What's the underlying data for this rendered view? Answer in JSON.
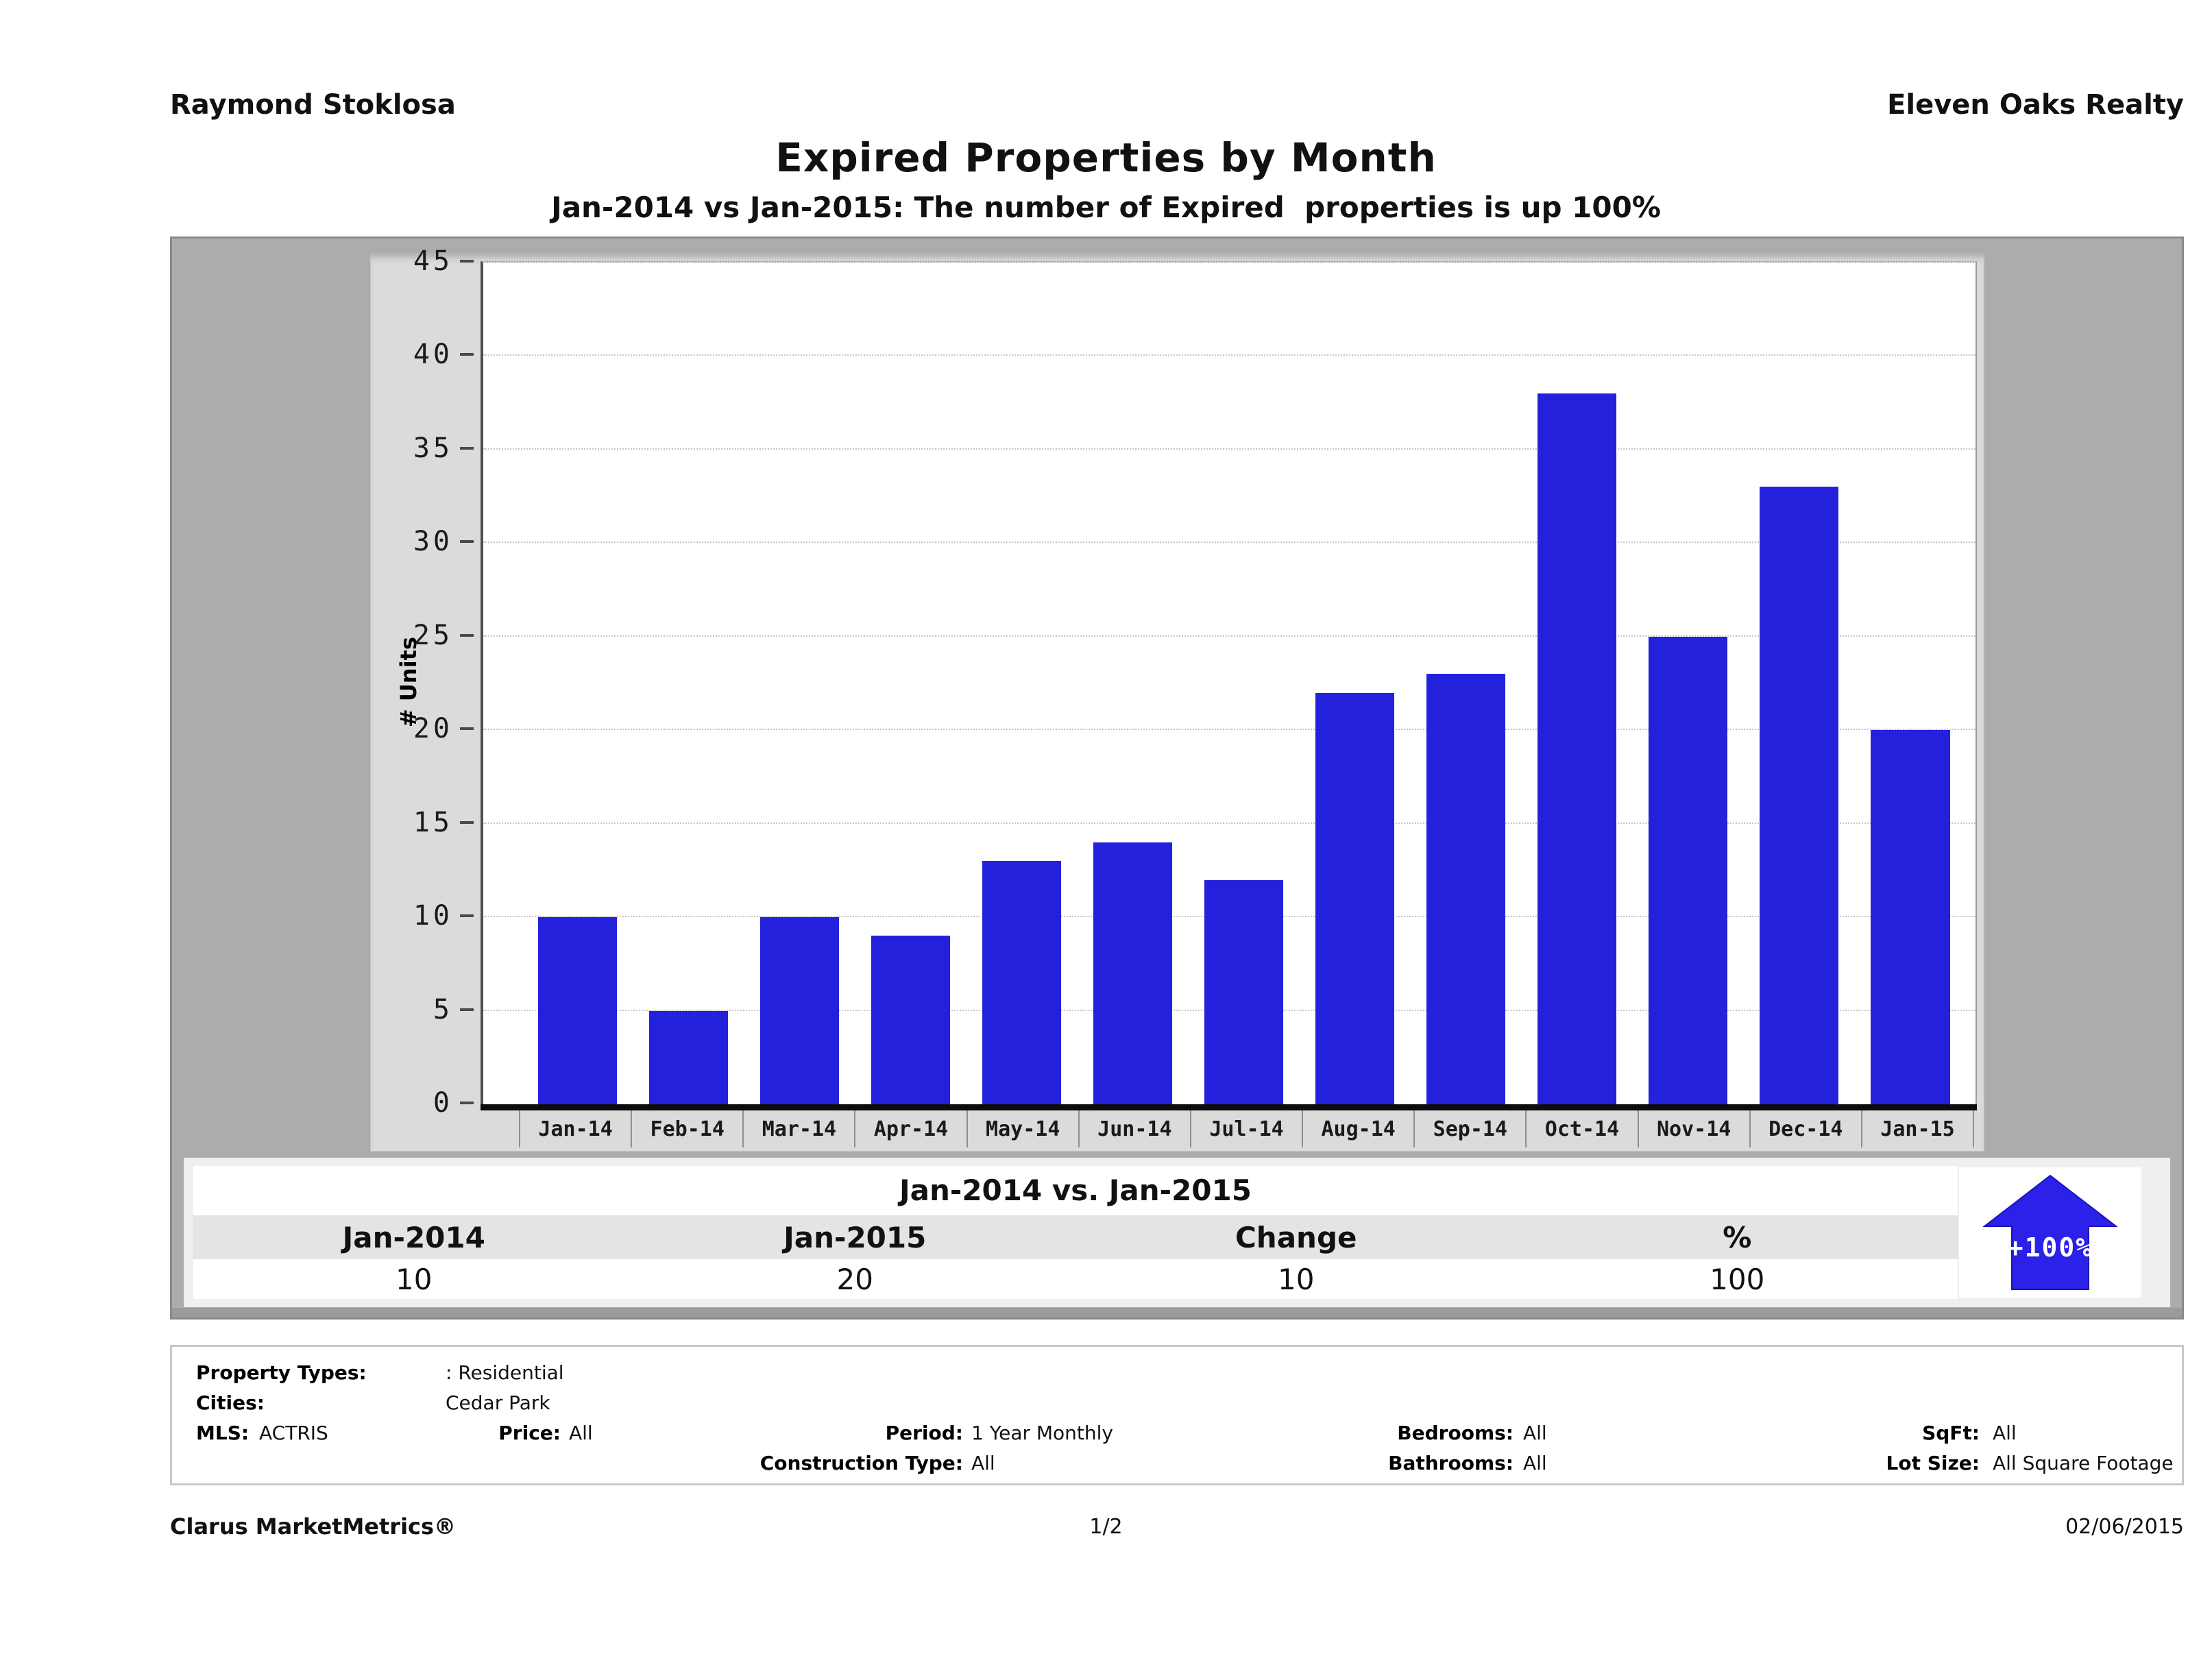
{
  "header": {
    "agent_name": "Raymond Stoklosa",
    "brokerage": "Eleven Oaks Realty",
    "title": "Expired Properties by Month",
    "subtitle": "Jan-2014 vs Jan-2015: The number of Expired  properties is up 100%"
  },
  "chart_data": {
    "type": "bar",
    "title": "Expired Properties by Month",
    "categories": [
      "Jan-14",
      "Feb-14",
      "Mar-14",
      "Apr-14",
      "May-14",
      "Jun-14",
      "Jul-14",
      "Aug-14",
      "Sep-14",
      "Oct-14",
      "Nov-14",
      "Dec-14",
      "Jan-15"
    ],
    "values": [
      10,
      5,
      10,
      9,
      13,
      14,
      12,
      22,
      23,
      38,
      25,
      33,
      20
    ],
    "xlabel": "",
    "ylabel": "# Units",
    "ylim": [
      0,
      45
    ],
    "ytick_step": 5,
    "grid": "horizontal-dotted",
    "legend": "none",
    "bar_color": "#2421dc"
  },
  "summary_table": {
    "title": "Jan-2014 vs. Jan-2015",
    "headers": [
      "Jan-2014",
      "Jan-2015",
      "Change",
      "%"
    ],
    "values": [
      "10",
      "20",
      "10",
      "100"
    ],
    "change_badge": "+100%",
    "arrow_direction": "up",
    "arrow_color": "#2b21e9"
  },
  "details": {
    "property_types_label": "Property Types:",
    "property_types_value": ": Residential",
    "cities_label": "Cities:",
    "cities_value": "Cedar Park",
    "mls_label": "MLS:",
    "mls_value": "ACTRIS",
    "price_label": "Price:",
    "price_value": "All",
    "period_label": "Period:",
    "period_value": "1 Year Monthly",
    "construction_type_label": "Construction Type:",
    "construction_type_value": "All",
    "bedrooms_label": "Bedrooms:",
    "bedrooms_value": "All",
    "bathrooms_label": "Bathrooms:",
    "bathrooms_value": "All",
    "sqft_label": "SqFt:",
    "sqft_value": "All",
    "lot_size_label": "Lot Size:",
    "lot_size_value": "All Square Footage"
  },
  "footer": {
    "product": "Clarus MarketMetrics®",
    "page": "1/2",
    "date": "02/06/2015"
  }
}
